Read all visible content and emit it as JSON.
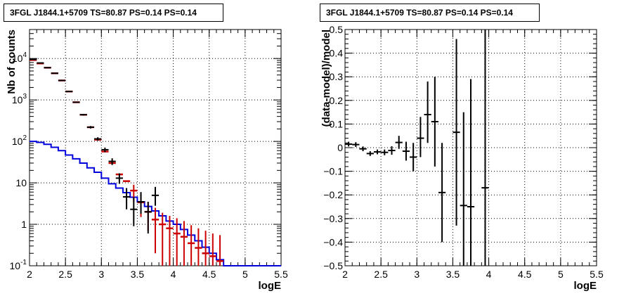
{
  "chart_data": [
    {
      "type": "line",
      "title": "3FGL J1844.1+5709 TS=80.87 PS=0.14 PS=0.14",
      "xlabel": "logE",
      "ylabel": "Nb of counts",
      "xlim": [
        2,
        5.5
      ],
      "ylim": [
        0.1,
        50000
      ],
      "y_scale": "log",
      "grid": true,
      "x_ticks": [
        {
          "v": 2,
          "label": "2"
        },
        {
          "v": 2.5,
          "label": "2.5"
        },
        {
          "v": 3,
          "label": "3"
        },
        {
          "v": 3.5,
          "label": "3.5"
        },
        {
          "v": 4,
          "label": "4"
        },
        {
          "v": 4.5,
          "label": "4.5"
        },
        {
          "v": 5,
          "label": "5"
        },
        {
          "v": 5.5,
          "label": "5.5"
        }
      ],
      "y_ticks": [
        {
          "v": 0.1,
          "base": "10",
          "exp": "-1"
        },
        {
          "v": 1,
          "base": "1",
          "exp": ""
        },
        {
          "v": 10,
          "base": "10",
          "exp": ""
        },
        {
          "v": 100,
          "base": "10",
          "exp": "2"
        },
        {
          "v": 1000,
          "base": "10",
          "exp": "3"
        },
        {
          "v": 10000,
          "base": "10",
          "exp": "4"
        }
      ],
      "series": [
        {
          "kind": "data-points",
          "color": "#000000",
          "bin_half_width": 0.05,
          "points": [
            {
              "x": 2.05,
              "y": 9500,
              "lo": 9400,
              "hi": 9600
            },
            {
              "x": 2.15,
              "y": 7800,
              "lo": 7700,
              "hi": 7900
            },
            {
              "x": 2.25,
              "y": 6000,
              "lo": 5920,
              "hi": 6080
            },
            {
              "x": 2.35,
              "y": 4400,
              "lo": 4340,
              "hi": 4460
            },
            {
              "x": 2.45,
              "y": 2950,
              "lo": 2900,
              "hi": 3000
            },
            {
              "x": 2.55,
              "y": 1600,
              "lo": 1560,
              "hi": 1640
            },
            {
              "x": 2.65,
              "y": 880,
              "lo": 850,
              "hi": 910
            },
            {
              "x": 2.75,
              "y": 440,
              "lo": 420,
              "hi": 460
            },
            {
              "x": 2.85,
              "y": 220,
              "lo": 205,
              "hi": 235
            },
            {
              "x": 2.95,
              "y": 115,
              "lo": 104,
              "hi": 126
            },
            {
              "x": 3.05,
              "y": 63,
              "lo": 55,
              "hi": 71
            },
            {
              "x": 3.15,
              "y": 33,
              "lo": 27,
              "hi": 39
            },
            {
              "x": 3.25,
              "y": 13,
              "lo": 9.5,
              "hi": 17
            },
            {
              "x": 3.35,
              "y": 4.6,
              "lo": 2.3,
              "hi": 7.5
            },
            {
              "x": 3.45,
              "y": 2.3,
              "lo": 0.9,
              "hi": 4.5
            },
            {
              "x": 3.55,
              "y": 3.5,
              "lo": 1.8,
              "hi": 6
            },
            {
              "x": 3.65,
              "y": 2,
              "lo": 0.6,
              "hi": 3.5
            },
            {
              "x": 3.75,
              "y": 5,
              "lo": 2.8,
              "hi": 8
            }
          ]
        },
        {
          "kind": "model-steps",
          "color": "#cc0000",
          "points": [
            {
              "x": 2.05,
              "y": 9200
            },
            {
              "x": 2.15,
              "y": 7600
            },
            {
              "x": 2.25,
              "y": 6000
            },
            {
              "x": 2.35,
              "y": 4400
            },
            {
              "x": 2.45,
              "y": 2950
            },
            {
              "x": 2.55,
              "y": 1600
            },
            {
              "x": 2.65,
              "y": 880
            },
            {
              "x": 2.75,
              "y": 440
            },
            {
              "x": 2.85,
              "y": 220
            },
            {
              "x": 2.95,
              "y": 110
            },
            {
              "x": 3.05,
              "y": 57
            },
            {
              "x": 3.15,
              "y": 30
            },
            {
              "x": 3.25,
              "y": 16
            },
            {
              "x": 3.35,
              "y": 11
            },
            {
              "x": 3.45,
              "y": 6.5
            },
            {
              "x": 3.55,
              "y": 3.4
            },
            {
              "x": 3.65,
              "y": 2
            },
            {
              "x": 3.75,
              "y": 1.3
            },
            {
              "x": 3.85,
              "y": 1
            },
            {
              "x": 3.95,
              "y": 0.8
            },
            {
              "x": 4.05,
              "y": 0.6
            },
            {
              "x": 4.15,
              "y": 0.5
            },
            {
              "x": 4.25,
              "y": 0.35
            },
            {
              "x": 4.35,
              "y": 0.27
            },
            {
              "x": 4.45,
              "y": 0.2
            },
            {
              "x": 4.55,
              "y": 0.17
            },
            {
              "x": 4.65,
              "y": 0.13
            }
          ],
          "errors": [
            {
              "x": 3.45,
              "lo": 3.5,
              "hi": 9
            },
            {
              "x": 3.55,
              "lo": 1.5,
              "hi": 5.5
            },
            {
              "x": 3.65,
              "lo": 0.7,
              "hi": 3.5
            },
            {
              "x": 3.75,
              "lo": 0.2,
              "hi": 2.5
            },
            {
              "x": 3.85,
              "lo": 0.1,
              "hi": 1.9
            },
            {
              "x": 3.95,
              "lo": 0.1,
              "hi": 1.6
            },
            {
              "x": 4.05,
              "lo": 0.1,
              "hi": 1.4
            },
            {
              "x": 4.15,
              "lo": 0.1,
              "hi": 1.2
            },
            {
              "x": 4.25,
              "lo": 0.1,
              "hi": 0.95
            },
            {
              "x": 4.35,
              "lo": 0.1,
              "hi": 0.8
            },
            {
              "x": 4.45,
              "lo": 0.1,
              "hi": 0.7
            },
            {
              "x": 4.55,
              "lo": 0.1,
              "hi": 0.6
            },
            {
              "x": 4.65,
              "lo": 0.1,
              "hi": 0.55
            }
          ]
        },
        {
          "kind": "background-steps",
          "color": "#0000dd",
          "edges": [
            2.0,
            2.1,
            2.2,
            2.3,
            2.4,
            2.5,
            2.6,
            2.7,
            2.8,
            2.9,
            3.0,
            3.1,
            3.2,
            3.3,
            3.4,
            3.5,
            3.6,
            3.7,
            3.8,
            3.9,
            4.0,
            4.1,
            4.2,
            4.3,
            4.4,
            4.5,
            4.6,
            4.7,
            5.5
          ],
          "values": [
            100,
            95,
            85,
            72,
            60,
            47,
            38,
            30,
            23,
            18,
            13,
            9.5,
            7.5,
            5.8,
            4.5,
            3.5,
            2.7,
            2.1,
            1.6,
            1.2,
            1.0,
            0.75,
            0.55,
            0.4,
            0.28,
            0.2,
            0.14,
            0.1
          ]
        }
      ]
    },
    {
      "type": "scatter",
      "title": "3FGL J1844.1+5709 TS=80.87 PS=0.14 PS=0.14",
      "xlabel": "logE",
      "ylabel": "(data-model)/model",
      "xlim": [
        2,
        5.5
      ],
      "ylim": [
        -0.5,
        0.5
      ],
      "grid": true,
      "x_ticks": [
        {
          "v": 2,
          "label": "2"
        },
        {
          "v": 2.5,
          "label": "2.5"
        },
        {
          "v": 3,
          "label": "3"
        },
        {
          "v": 3.5,
          "label": "3.5"
        },
        {
          "v": 4,
          "label": "4"
        },
        {
          "v": 4.5,
          "label": "4.5"
        },
        {
          "v": 5,
          "label": "5"
        },
        {
          "v": 5.5,
          "label": "5.5"
        }
      ],
      "y_ticks": [
        {
          "v": 0.5,
          "label": "0.5"
        },
        {
          "v": 0.4,
          "label": "0.4"
        },
        {
          "v": 0.3,
          "label": "0.3"
        },
        {
          "v": 0.2,
          "label": "0.2"
        },
        {
          "v": 0.1,
          "label": "0.1"
        },
        {
          "v": 0,
          "label": "0"
        },
        {
          "v": -0.1,
          "label": "−0.1"
        },
        {
          "v": -0.2,
          "label": "−0.2"
        },
        {
          "v": -0.3,
          "label": "−0.3"
        },
        {
          "v": -0.4,
          "label": "−0.4"
        },
        {
          "v": -0.5,
          "label": "−0.5"
        }
      ],
      "series": [
        {
          "kind": "residual-points",
          "color": "#000000",
          "bin_half_width": 0.05,
          "points": [
            {
              "x": 2.05,
              "y": 0.015,
              "lo": 0.005,
              "hi": 0.025
            },
            {
              "x": 2.15,
              "y": 0.013,
              "lo": 0.003,
              "hi": 0.023
            },
            {
              "x": 2.25,
              "y": -0.005,
              "lo": -0.015,
              "hi": 0.005
            },
            {
              "x": 2.35,
              "y": -0.025,
              "lo": -0.035,
              "hi": -0.015
            },
            {
              "x": 2.45,
              "y": -0.018,
              "lo": -0.028,
              "hi": -0.008
            },
            {
              "x": 2.55,
              "y": -0.02,
              "lo": -0.032,
              "hi": -0.008
            },
            {
              "x": 2.65,
              "y": -0.012,
              "lo": -0.03,
              "hi": 0.006
            },
            {
              "x": 2.75,
              "y": 0.022,
              "lo": -0.005,
              "hi": 0.05
            },
            {
              "x": 2.85,
              "y": -0.015,
              "lo": -0.055,
              "hi": 0.025
            },
            {
              "x": 2.95,
              "y": -0.04,
              "lo": -0.1,
              "hi": 0.02
            },
            {
              "x": 3.05,
              "y": 0.04,
              "lo": -0.04,
              "hi": 0.13
            },
            {
              "x": 3.15,
              "y": 0.14,
              "lo": 0.02,
              "hi": 0.28
            },
            {
              "x": 3.25,
              "y": 0.11,
              "lo": -0.08,
              "hi": 0.3
            },
            {
              "x": 3.35,
              "y": -0.19,
              "lo": -0.4,
              "hi": 0.02
            },
            {
              "x": 3.55,
              "y": 0.065,
              "lo": -0.33,
              "hi": 0.46
            },
            {
              "x": 3.65,
              "y": -0.245,
              "lo": -0.5,
              "hi": 0.15
            },
            {
              "x": 3.75,
              "y": -0.25,
              "lo": -0.5,
              "hi": 0.29
            },
            {
              "x": 3.95,
              "y": -0.17,
              "lo": -0.5,
              "hi": 0.5
            }
          ]
        }
      ]
    }
  ]
}
